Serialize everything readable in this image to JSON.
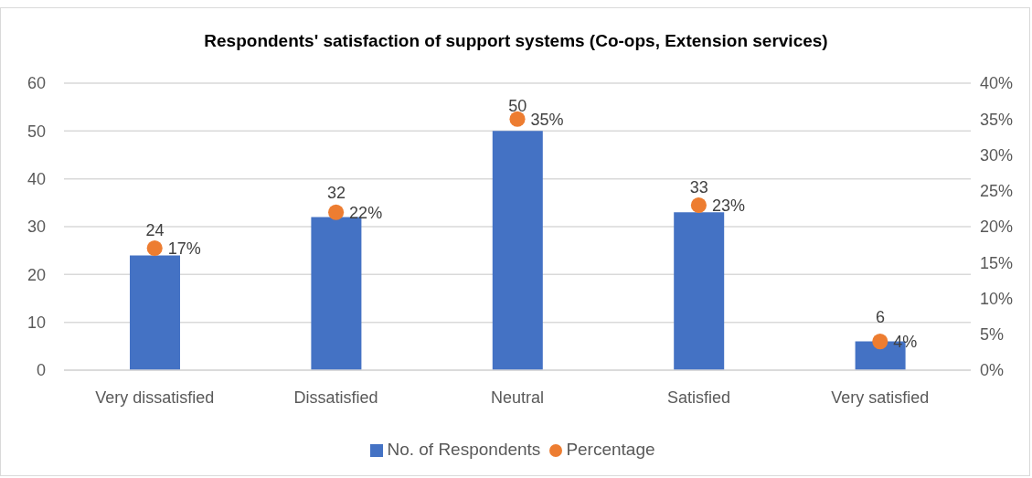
{
  "chart_data": {
    "type": "bar",
    "title": "Respondents' satisfaction of support systems (Co-ops, Extension services)",
    "categories": [
      "Very dissatisfied",
      "Dissatisfied",
      "Neutral",
      "Satisfied",
      "Very satisfied"
    ],
    "series": [
      {
        "name": "No. of Respondents",
        "color": "#4472c4",
        "values": [
          24,
          32,
          50,
          33,
          6
        ],
        "value_labels": [
          "24",
          "32",
          "50",
          "33",
          "6"
        ]
      },
      {
        "name": "Percentage",
        "type": "scatter",
        "axis": "y2",
        "marker": "circle",
        "color": "#ed7d31",
        "values": [
          17,
          22,
          35,
          23,
          4
        ],
        "value_labels": [
          "17%",
          "22%",
          "35%",
          "23%",
          "4%"
        ]
      }
    ],
    "ylim": [
      0,
      60
    ],
    "yticks": [
      0,
      10,
      20,
      30,
      40,
      50,
      60
    ],
    "y2lim": [
      0,
      40
    ],
    "y2ticks": [
      {
        "value": 0,
        "label": "0%"
      },
      {
        "value": 5,
        "label": "5%"
      },
      {
        "value": 10,
        "label": "10%"
      },
      {
        "value": 15,
        "label": "15%"
      },
      {
        "value": 20,
        "label": "20%"
      },
      {
        "value": 25,
        "label": "25%"
      },
      {
        "value": 30,
        "label": "30%"
      },
      {
        "value": 35,
        "label": "35%"
      },
      {
        "value": 40,
        "label": "40%"
      }
    ],
    "grid": "y",
    "legend": "bottom"
  }
}
